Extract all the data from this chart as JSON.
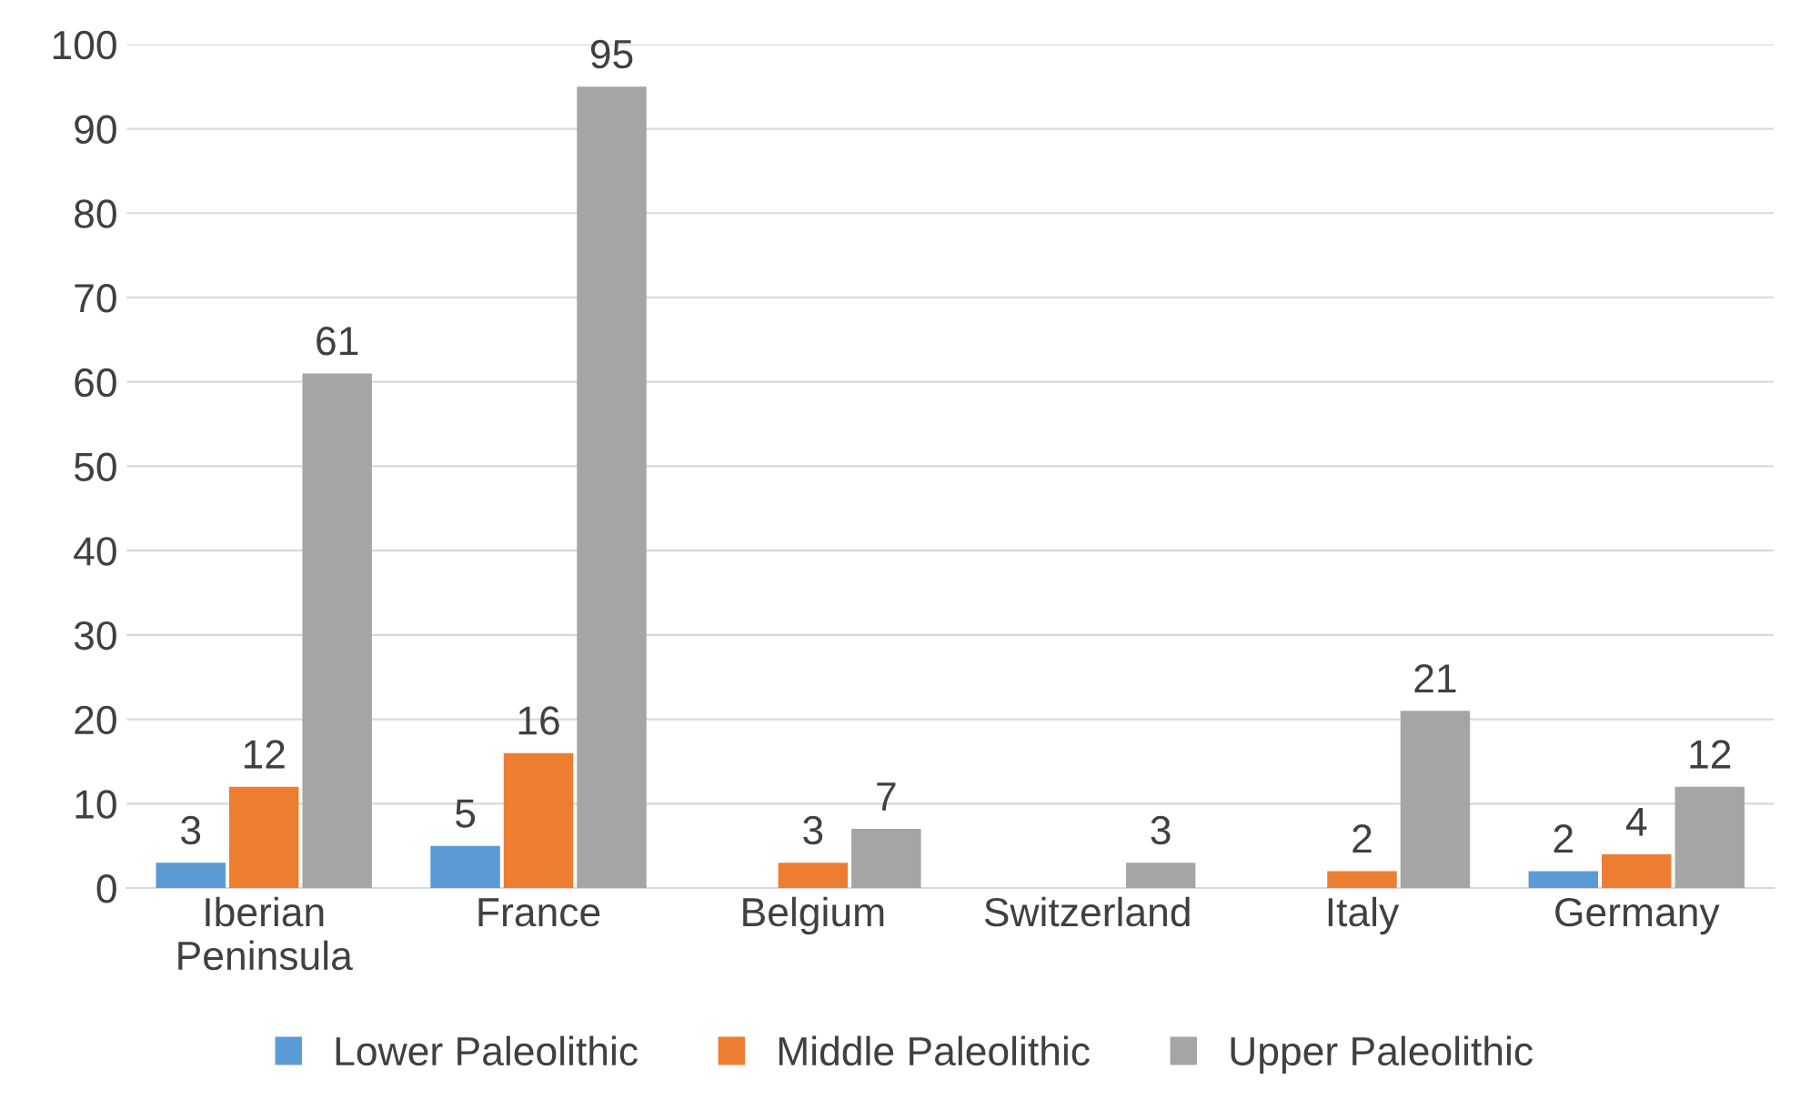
{
  "chart_data": {
    "type": "bar",
    "categories": [
      "Iberian\nPeninsula",
      "France",
      "Belgium",
      "Switzerland",
      "Italy",
      "Germany"
    ],
    "series": [
      {
        "name": "Lower Paleolithic",
        "color": "#5b9bd5",
        "values": [
          3,
          5,
          null,
          null,
          null,
          2
        ]
      },
      {
        "name": "Middle Paleolithic",
        "color": "#ed7d31",
        "values": [
          12,
          16,
          3,
          null,
          2,
          4
        ]
      },
      {
        "name": "Upper Paleolithic",
        "color": "#a5a5a5",
        "values": [
          61,
          95,
          7,
          3,
          21,
          12
        ]
      }
    ],
    "ylim": [
      0,
      100
    ],
    "yticks": [
      0,
      10,
      20,
      30,
      40,
      50,
      60,
      70,
      80,
      90,
      100
    ],
    "grid": "y",
    "legend": "bottom",
    "data_labels": true
  }
}
